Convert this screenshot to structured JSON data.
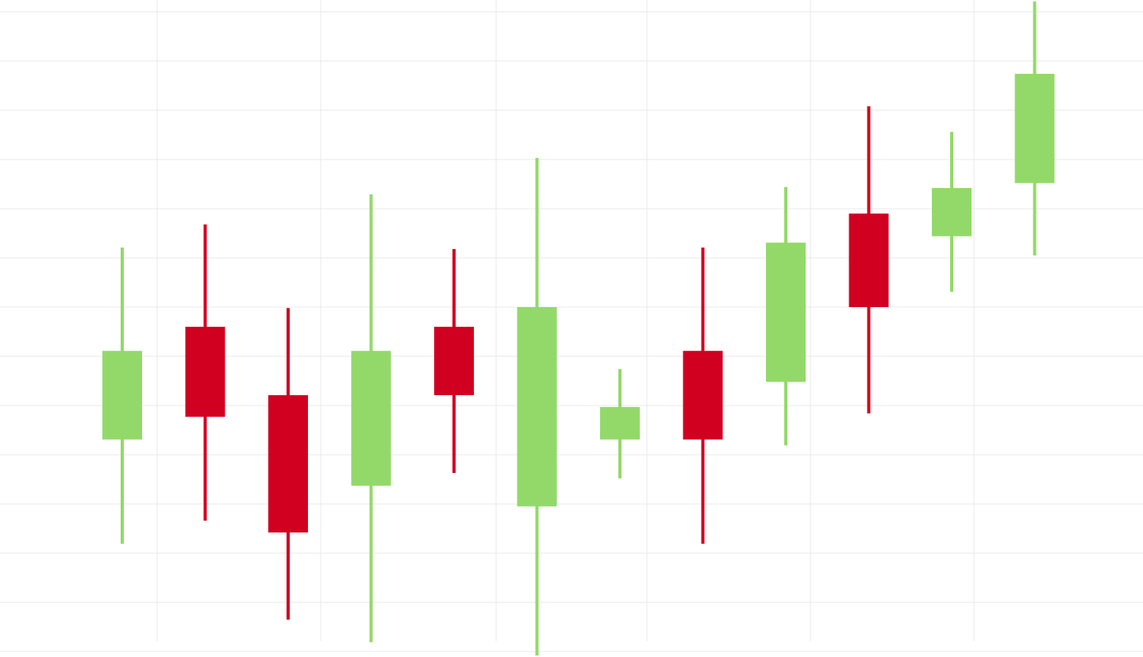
{
  "chart_data": {
    "type": "candlestick",
    "title": "",
    "xlabel": "",
    "ylabel": "",
    "ylim": [
      -1.11,
      12.24
    ],
    "grid": true,
    "colors": {
      "up": "#93d96a",
      "down": "#d10021",
      "grid": "#e9e9e9"
    },
    "candles": [
      {
        "open": 3.31,
        "high": 7.21,
        "low": 1.19,
        "close": 5.11
      },
      {
        "open": 5.6,
        "high": 7.68,
        "low": 1.66,
        "close": 3.77
      },
      {
        "open": 4.21,
        "high": 5.98,
        "low": -0.35,
        "close": 1.42
      },
      {
        "open": 2.37,
        "high": 8.29,
        "low": -0.81,
        "close": 5.11
      },
      {
        "open": 5.6,
        "high": 7.18,
        "low": 2.63,
        "close": 4.21
      },
      {
        "open": 1.95,
        "high": 9.03,
        "low": -1.08,
        "close": 6.0
      },
      {
        "open": 3.31,
        "high": 4.74,
        "low": 2.52,
        "close": 3.97
      },
      {
        "open": 5.11,
        "high": 7.21,
        "low": 1.19,
        "close": 3.31
      },
      {
        "open": 4.48,
        "high": 8.44,
        "low": 3.19,
        "close": 7.31
      },
      {
        "open": 7.9,
        "high": 10.08,
        "low": 3.84,
        "close": 6.0
      },
      {
        "open": 7.44,
        "high": 9.56,
        "low": 6.31,
        "close": 8.42
      },
      {
        "open": 8.52,
        "high": 12.21,
        "low": 7.05,
        "close": 10.74
      }
    ]
  }
}
